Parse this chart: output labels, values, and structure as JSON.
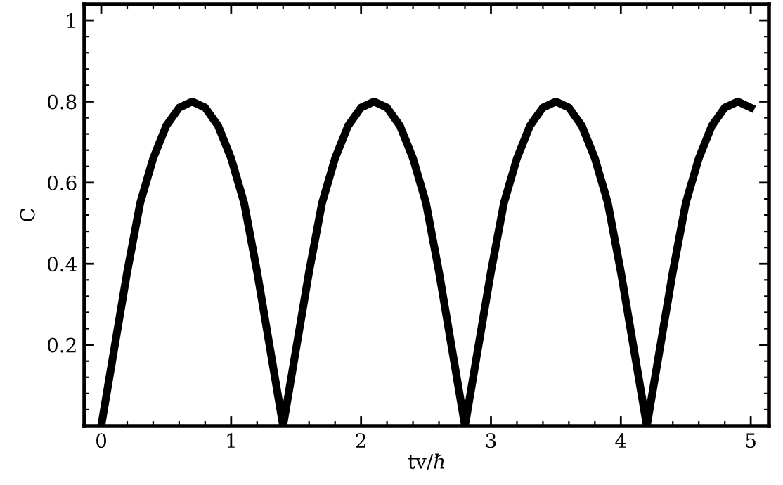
{
  "chart_data": {
    "type": "line",
    "xlabel": "tv/ℏ",
    "ylabel": "C",
    "x": [
      0,
      0.1,
      0.2,
      0.3,
      0.4,
      0.5,
      0.6,
      0.7,
      0.8,
      0.9,
      1.0,
      1.1,
      1.2,
      1.3,
      1.4,
      1.5,
      1.6,
      1.7,
      1.8,
      1.9,
      2.0,
      2.1,
      2.2,
      2.3,
      2.4,
      2.5,
      2.6,
      2.7,
      2.8,
      2.9,
      3.0,
      3.1,
      3.2,
      3.3,
      3.4,
      3.5,
      3.6,
      3.7,
      3.8,
      3.9,
      4.0,
      4.1,
      4.2,
      4.3,
      4.4,
      4.5,
      4.6,
      4.7,
      4.8,
      4.9,
      5.0
    ],
    "series": [
      {
        "color": "#000000",
        "values": [
          0,
          0.19,
          0.38,
          0.55,
          0.66,
          0.74,
          0.785,
          0.8,
          0.785,
          0.74,
          0.66,
          0.55,
          0.38,
          0.19,
          0,
          0.19,
          0.38,
          0.55,
          0.66,
          0.74,
          0.785,
          0.8,
          0.785,
          0.74,
          0.66,
          0.55,
          0.38,
          0.19,
          0,
          0.19,
          0.38,
          0.55,
          0.66,
          0.74,
          0.785,
          0.8,
          0.785,
          0.74,
          0.66,
          0.55,
          0.38,
          0.19,
          0,
          0.19,
          0.38,
          0.55,
          0.66,
          0.74,
          0.785,
          0.8,
          0.785
        ]
      }
    ],
    "xlim": [
      -0.13,
      5.14
    ],
    "ylim": [
      0,
      1.04
    ],
    "xticks": [
      0,
      1,
      2,
      3,
      4,
      5
    ],
    "yticks": [
      0.2,
      0.4,
      0.6,
      0.8,
      1
    ],
    "grid": false,
    "legend": false,
    "marker": "none",
    "line_style": "solid"
  }
}
